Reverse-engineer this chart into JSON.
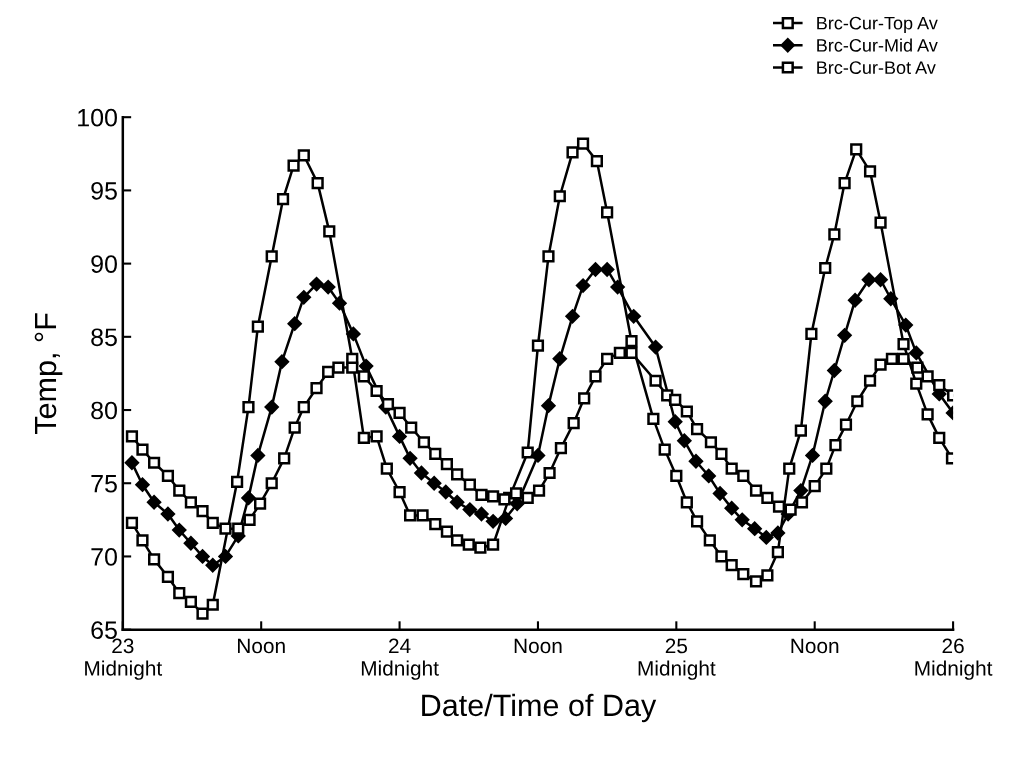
{
  "chart_data": {
    "type": "line",
    "xlabel": "Date/Time of Day",
    "ylabel": "Temp, °F",
    "xlim": [
      23,
      26
    ],
    "ylim": [
      65,
      100
    ],
    "xticks": [
      {
        "value": 23,
        "label": "23\nMidnight"
      },
      {
        "value": 23.5,
        "label": "Noon"
      },
      {
        "value": 24,
        "label": "24\nMidnight"
      },
      {
        "value": 24.5,
        "label": "Noon"
      },
      {
        "value": 25,
        "label": "25\nMidnight"
      },
      {
        "value": 25.5,
        "label": "Noon"
      },
      {
        "value": 26,
        "label": "26\nMidnight"
      }
    ],
    "yticks": [
      65,
      70,
      75,
      80,
      85,
      90,
      95,
      100
    ],
    "grid": false,
    "legend": "top right",
    "line_style": "solid",
    "series": [
      {
        "name": "Brc-Cur-Top Av",
        "color": "#000000",
        "marker": "square",
        "x": [
          23.033,
          23.071,
          23.113,
          23.163,
          23.204,
          23.246,
          23.288,
          23.325,
          23.413,
          23.454,
          23.488,
          23.538,
          23.579,
          23.617,
          23.654,
          23.704,
          23.746,
          23.829,
          23.871,
          23.917,
          23.954,
          24.0,
          24.038,
          24.083,
          24.129,
          24.171,
          24.208,
          24.25,
          24.292,
          24.338,
          24.396,
          24.463,
          24.5,
          24.538,
          24.579,
          24.625,
          24.663,
          24.713,
          24.75,
          24.838,
          24.917,
          24.958,
          25.0,
          25.038,
          25.075,
          25.121,
          25.163,
          25.2,
          25.242,
          25.288,
          25.329,
          25.367,
          25.408,
          25.45,
          25.488,
          25.538,
          25.571,
          25.608,
          25.65,
          25.7,
          25.738,
          25.821,
          25.867,
          25.908,
          25.95,
          25.996
        ],
        "values": [
          72.3,
          71.1,
          69.8,
          68.6,
          67.5,
          66.9,
          66.1,
          66.7,
          75.1,
          80.2,
          85.7,
          90.5,
          94.4,
          96.7,
          97.4,
          95.5,
          92.2,
          83.5,
          78.1,
          78.2,
          76.0,
          74.4,
          72.8,
          72.8,
          72.2,
          71.7,
          71.1,
          70.8,
          70.6,
          70.8,
          74.0,
          77.1,
          84.4,
          90.5,
          94.6,
          97.6,
          98.2,
          97.0,
          93.5,
          84.7,
          79.4,
          77.3,
          75.5,
          73.7,
          72.4,
          71.1,
          70.0,
          69.4,
          68.8,
          68.3,
          68.7,
          70.3,
          76.0,
          78.6,
          85.2,
          89.7,
          92.0,
          95.5,
          97.8,
          96.3,
          92.8,
          84.5,
          81.8,
          79.7,
          78.1,
          76.7
        ]
      },
      {
        "name": "Brc-Cur-Mid Av",
        "color": "#000000",
        "marker": "diamond",
        "x": [
          23.033,
          23.071,
          23.113,
          23.163,
          23.204,
          23.246,
          23.288,
          23.325,
          23.371,
          23.417,
          23.454,
          23.488,
          23.538,
          23.575,
          23.621,
          23.654,
          23.7,
          23.742,
          23.783,
          23.833,
          23.879,
          23.95,
          24.0,
          24.038,
          24.079,
          24.125,
          24.167,
          24.208,
          24.254,
          24.296,
          24.338,
          24.383,
          24.425,
          24.5,
          24.538,
          24.579,
          24.625,
          24.663,
          24.708,
          24.75,
          24.788,
          24.846,
          24.925,
          24.996,
          25.029,
          25.071,
          25.117,
          25.158,
          25.2,
          25.238,
          25.283,
          25.325,
          25.367,
          25.404,
          25.45,
          25.492,
          25.538,
          25.571,
          25.608,
          25.646,
          25.696,
          25.738,
          25.775,
          25.829,
          25.867,
          25.95,
          26.0
        ],
        "values": [
          76.4,
          74.9,
          73.7,
          72.9,
          71.8,
          70.9,
          70.0,
          69.4,
          70.0,
          71.4,
          74.0,
          76.9,
          80.2,
          83.3,
          85.9,
          87.7,
          88.6,
          88.4,
          87.3,
          85.2,
          83.0,
          80.2,
          78.2,
          76.7,
          75.7,
          75.0,
          74.4,
          73.7,
          73.2,
          72.9,
          72.4,
          72.6,
          73.6,
          76.9,
          80.3,
          83.5,
          86.4,
          88.5,
          89.6,
          89.6,
          88.4,
          86.4,
          84.3,
          79.2,
          77.9,
          76.5,
          75.5,
          74.3,
          73.3,
          72.5,
          71.9,
          71.3,
          71.6,
          72.9,
          74.5,
          76.9,
          80.6,
          82.7,
          85.1,
          87.5,
          88.9,
          88.9,
          87.6,
          85.8,
          83.9,
          81.1,
          79.8
        ]
      },
      {
        "name": "Brc-Cur-Bot Av",
        "color": "#000000",
        "marker": "square",
        "x": [
          23.033,
          23.071,
          23.113,
          23.163,
          23.204,
          23.246,
          23.288,
          23.325,
          23.371,
          23.417,
          23.458,
          23.496,
          23.538,
          23.583,
          23.621,
          23.654,
          23.7,
          23.742,
          23.779,
          23.829,
          23.871,
          23.917,
          23.958,
          24.0,
          24.042,
          24.088,
          24.129,
          24.171,
          24.208,
          24.254,
          24.296,
          24.338,
          24.379,
          24.421,
          24.463,
          24.504,
          24.542,
          24.583,
          24.629,
          24.667,
          24.708,
          24.75,
          24.796,
          24.838,
          24.925,
          24.967,
          24.996,
          25.038,
          25.075,
          25.125,
          25.163,
          25.2,
          25.242,
          25.288,
          25.329,
          25.371,
          25.413,
          25.454,
          25.5,
          25.542,
          25.575,
          25.613,
          25.654,
          25.7,
          25.738,
          25.779,
          25.821,
          25.871,
          25.908,
          25.95,
          26.0
        ],
        "values": [
          78.2,
          77.3,
          76.4,
          75.5,
          74.5,
          73.7,
          73.1,
          72.3,
          71.9,
          71.9,
          72.5,
          73.6,
          75.0,
          76.7,
          78.8,
          80.2,
          81.5,
          82.6,
          82.9,
          82.9,
          82.3,
          81.3,
          80.4,
          79.8,
          78.8,
          77.8,
          77.0,
          76.3,
          75.6,
          74.9,
          74.2,
          74.1,
          73.9,
          74.3,
          74.0,
          74.5,
          75.7,
          77.4,
          79.1,
          80.8,
          82.3,
          83.5,
          83.9,
          83.9,
          82.0,
          81.0,
          80.7,
          79.9,
          78.7,
          77.8,
          77.0,
          76.0,
          75.5,
          74.5,
          74.0,
          73.4,
          73.2,
          73.7,
          74.8,
          76.0,
          77.6,
          79.0,
          80.6,
          82.0,
          83.1,
          83.5,
          83.5,
          82.9,
          82.3,
          81.7,
          81.0
        ]
      }
    ]
  }
}
